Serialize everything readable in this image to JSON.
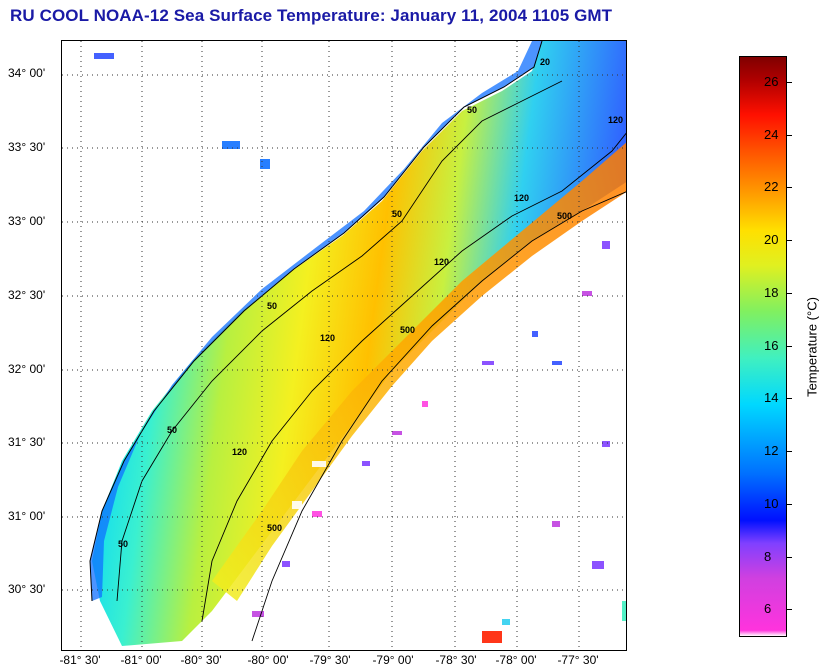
{
  "title": "RU COOL  NOAA-12  Sea Surface Temperature:  January 11, 2004 1105 GMT",
  "map": {
    "y_labels": [
      "34° 00'",
      "33° 30'",
      "33° 00'",
      "32° 30'",
      "32° 00'",
      "31° 30'",
      "31° 00'",
      "30° 30'"
    ],
    "x_labels": [
      "-81° 30'",
      "-81° 00'",
      "-80° 30'",
      "-80° 00'",
      "-79° 30'",
      "-79° 00'",
      "-78° 30'",
      "-78° 00'",
      "-77° 30'"
    ],
    "contour_labels": [
      "50",
      "50",
      "50",
      "50",
      "50",
      "120",
      "120",
      "120",
      "120",
      "500",
      "500",
      "500",
      "120",
      "20"
    ]
  },
  "colorbar": {
    "title": "Temperature (°C)",
    "ticks": [
      "26",
      "24",
      "22",
      "20",
      "18",
      "16",
      "14",
      "12",
      "10",
      "8",
      "6"
    ],
    "colors": {
      "min": "#ff33dd",
      "low": "#0010ff",
      "mid": "#00d8ff",
      "high": "#ffe000",
      "max": "#800000"
    }
  }
}
